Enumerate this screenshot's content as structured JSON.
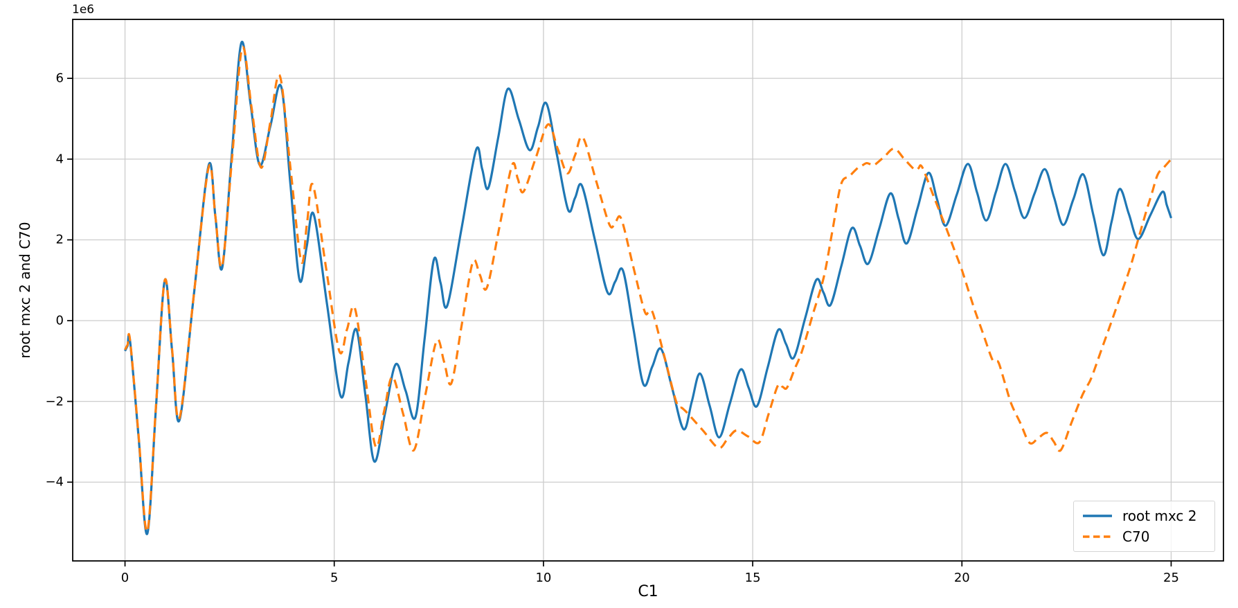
{
  "chart_data": {
    "type": "line",
    "title": "",
    "xlabel": "C1",
    "ylabel": "root mxc 2 and C70",
    "y_offset_text": "1e6",
    "y_scale": "1e6",
    "grid": true,
    "legend_loc": "lower right",
    "xlim": [
      -1.25,
      26.25
    ],
    "ylim": [
      -5.95,
      7.46
    ],
    "x_tick_values": [
      0,
      5,
      10,
      15,
      20,
      25
    ],
    "x_tick_labels": [
      "0",
      "5",
      "10",
      "15",
      "20",
      "25"
    ],
    "y_tick_values": [
      -4,
      -2,
      0,
      2,
      4,
      6
    ],
    "y_tick_labels": [
      "−4",
      "−2",
      "0",
      "2",
      "4",
      "6"
    ],
    "series": [
      {
        "name": "root mxc 2",
        "color": "#1f77b4",
        "style": "solid",
        "points": [
          [
            0,
            -0.75
          ],
          [
            0.12,
            -0.5
          ],
          [
            0.53,
            -5.28
          ],
          [
            0.95,
            1.0
          ],
          [
            1.3,
            -2.47
          ],
          [
            2.0,
            3.85
          ],
          [
            2.32,
            1.3
          ],
          [
            2.78,
            6.88
          ],
          [
            3.22,
            3.85
          ],
          [
            3.73,
            5.8
          ],
          [
            4.17,
            1.01
          ],
          [
            4.51,
            2.63
          ],
          [
            5.15,
            -1.86
          ],
          [
            5.53,
            -0.22
          ],
          [
            5.96,
            -3.49
          ],
          [
            6.47,
            -1.08
          ],
          [
            6.94,
            -2.39
          ],
          [
            7.38,
            1.51
          ],
          [
            7.7,
            0.37
          ],
          [
            8.39,
            4.23
          ],
          [
            8.68,
            3.28
          ],
          [
            9.15,
            5.74
          ],
          [
            9.67,
            4.22
          ],
          [
            10.07,
            5.38
          ],
          [
            10.59,
            2.74
          ],
          [
            10.92,
            3.34
          ],
          [
            11.53,
            0.7
          ],
          [
            11.9,
            1.24
          ],
          [
            12.39,
            -1.58
          ],
          [
            12.81,
            -0.7
          ],
          [
            13.35,
            -2.69
          ],
          [
            13.74,
            -1.31
          ],
          [
            14.2,
            -2.89
          ],
          [
            14.71,
            -1.21
          ],
          [
            15.1,
            -2.12
          ],
          [
            15.61,
            -0.23
          ],
          [
            15.98,
            -0.92
          ],
          [
            16.52,
            1.01
          ],
          [
            16.86,
            0.39
          ],
          [
            17.37,
            2.29
          ],
          [
            17.76,
            1.41
          ],
          [
            18.29,
            3.15
          ],
          [
            18.68,
            1.91
          ],
          [
            19.2,
            3.66
          ],
          [
            19.61,
            2.35
          ],
          [
            20.14,
            3.88
          ],
          [
            20.58,
            2.48
          ],
          [
            21.04,
            3.88
          ],
          [
            21.49,
            2.54
          ],
          [
            21.98,
            3.75
          ],
          [
            22.42,
            2.37
          ],
          [
            22.9,
            3.62
          ],
          [
            23.38,
            1.62
          ],
          [
            23.77,
            3.26
          ],
          [
            24.21,
            2.02
          ],
          [
            24.79,
            3.19
          ],
          [
            25,
            2.54
          ]
        ]
      },
      {
        "name": "C70",
        "color": "#ff7f0e",
        "style": "dashed",
        "points": [
          [
            0,
            -0.72
          ],
          [
            0.12,
            -0.48
          ],
          [
            0.53,
            -5.22
          ],
          [
            0.95,
            1.0
          ],
          [
            1.3,
            -2.42
          ],
          [
            2.0,
            3.8
          ],
          [
            2.32,
            1.35
          ],
          [
            2.8,
            6.75
          ],
          [
            3.25,
            3.79
          ],
          [
            3.7,
            6.06
          ],
          [
            4.21,
            1.47
          ],
          [
            4.49,
            3.36
          ],
          [
            5.12,
            -0.75
          ],
          [
            5.49,
            0.32
          ],
          [
            5.99,
            -3.12
          ],
          [
            6.39,
            -1.39
          ],
          [
            6.9,
            -3.21
          ],
          [
            7.45,
            -0.49
          ],
          [
            7.8,
            -1.55
          ],
          [
            8.31,
            1.45
          ],
          [
            8.65,
            0.82
          ],
          [
            9.25,
            3.85
          ],
          [
            9.52,
            3.19
          ],
          [
            10.11,
            4.86
          ],
          [
            10.57,
            3.65
          ],
          [
            10.94,
            4.54
          ],
          [
            11.58,
            2.37
          ],
          [
            11.86,
            2.52
          ],
          [
            12.41,
            0.25
          ],
          [
            12.62,
            0.17
          ],
          [
            13.18,
            -2.03
          ],
          [
            13.45,
            -2.3
          ],
          [
            14.18,
            -3.15
          ],
          [
            14.61,
            -2.72
          ],
          [
            15.16,
            -3.01
          ],
          [
            15.6,
            -1.61
          ],
          [
            15.82,
            -1.66
          ],
          [
            16.18,
            -0.75
          ],
          [
            16.7,
            1.08
          ],
          [
            17.11,
            3.37
          ],
          [
            17.52,
            3.79
          ],
          [
            17.72,
            3.9
          ],
          [
            17.9,
            3.85
          ],
          [
            18.38,
            4.26
          ],
          [
            18.87,
            3.74
          ],
          [
            19.05,
            3.8
          ],
          [
            19.61,
            2.33
          ],
          [
            20.0,
            1.25
          ],
          [
            20.3,
            0.28
          ],
          [
            20.72,
            -0.95
          ],
          [
            20.88,
            -1.05
          ],
          [
            21.18,
            -2.06
          ],
          [
            21.62,
            -3.03
          ],
          [
            22.03,
            -2.78
          ],
          [
            22.36,
            -3.21
          ],
          [
            22.86,
            -1.89
          ],
          [
            23.1,
            -1.4
          ],
          [
            23.6,
            0.05
          ],
          [
            24.02,
            1.31
          ],
          [
            24.38,
            2.62
          ],
          [
            24.68,
            3.62
          ],
          [
            25,
            4.0
          ]
        ]
      }
    ],
    "colors": {
      "grid": "#cccccc",
      "spine": "#000000",
      "background": "#ffffff"
    }
  }
}
